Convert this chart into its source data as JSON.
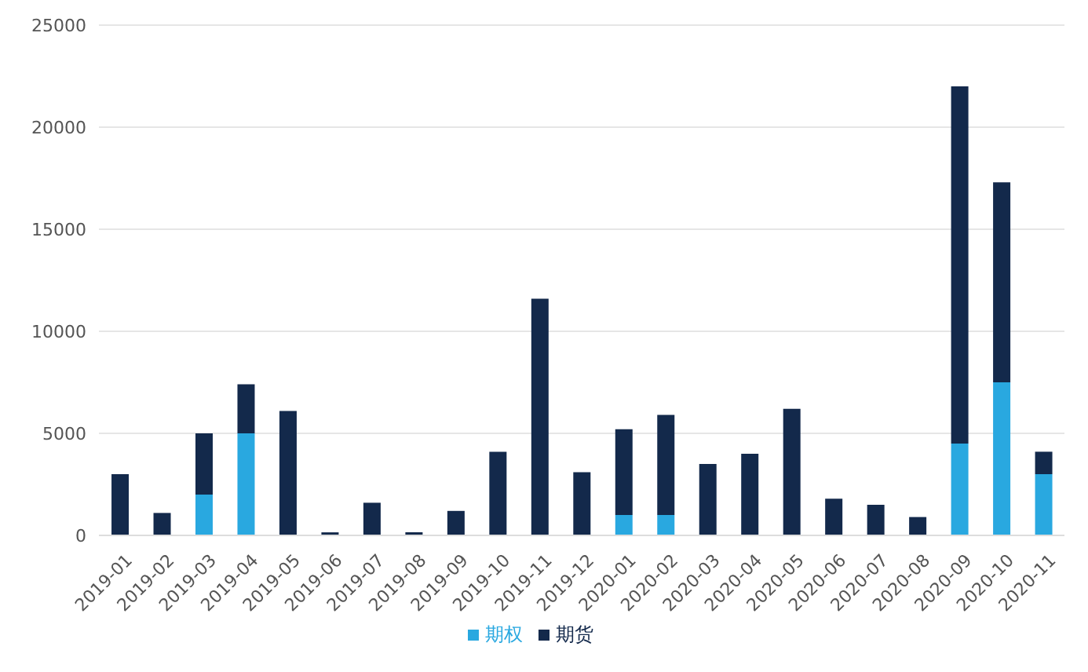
{
  "chart_data": {
    "type": "bar",
    "stacked": true,
    "categories": [
      "2019-01",
      "2019-02",
      "2019-03",
      "2019-04",
      "2019-05",
      "2019-06",
      "2019-07",
      "2019-08",
      "2019-09",
      "2019-10",
      "2019-11",
      "2019-12",
      "2020-01",
      "2020-02",
      "2020-03",
      "2020-04",
      "2020-05",
      "2020-06",
      "2020-07",
      "2020-08",
      "2020-09",
      "2020-10",
      "2020-11"
    ],
    "series": [
      {
        "name": "期权",
        "color": "#29a8e0",
        "values": [
          0,
          0,
          2000,
          5000,
          0,
          0,
          0,
          0,
          0,
          0,
          0,
          0,
          1000,
          1000,
          0,
          0,
          0,
          0,
          0,
          0,
          4500,
          7500,
          3000
        ]
      },
      {
        "name": "期货",
        "color": "#13294b",
        "values": [
          3000,
          1100,
          3000,
          2400,
          6100,
          150,
          1600,
          150,
          1200,
          4100,
          11600,
          3100,
          4200,
          4900,
          3500,
          4000,
          6200,
          1800,
          1500,
          900,
          17500,
          9800,
          1100
        ]
      }
    ],
    "ylim": [
      0,
      25000
    ],
    "yticks": [
      0,
      5000,
      10000,
      15000,
      20000,
      25000
    ],
    "grid": "y",
    "legend": "bottom"
  }
}
